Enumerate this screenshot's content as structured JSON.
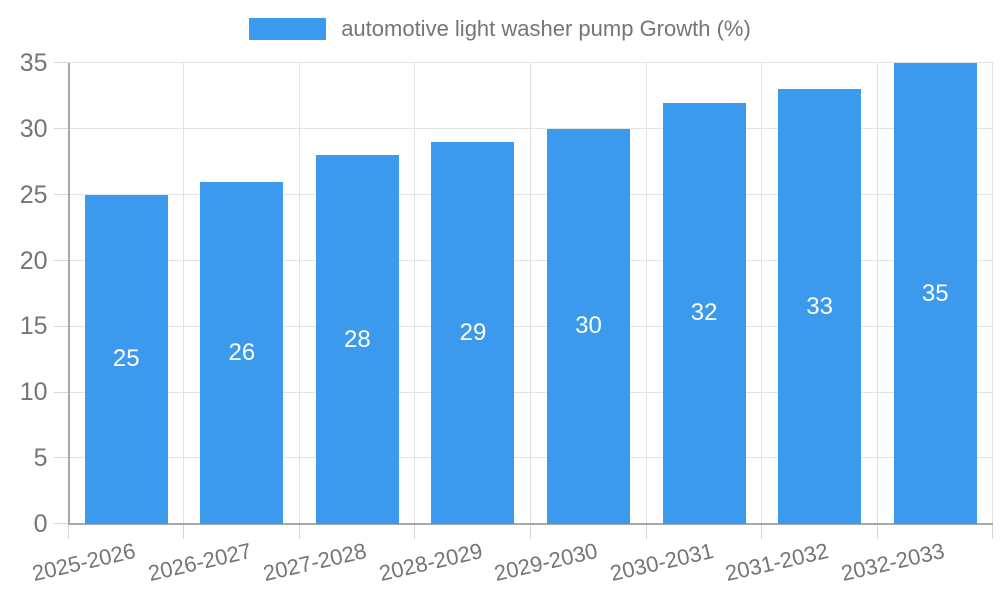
{
  "chart_data": {
    "type": "bar",
    "legend": {
      "label": "automotive light washer pump Growth (%)",
      "position": "top"
    },
    "categories": [
      "2025-2026",
      "2026-2027",
      "2027-2028",
      "2028-2029",
      "2029-2030",
      "2030-2031",
      "2031-2032",
      "2032-2033"
    ],
    "values": [
      25,
      26,
      28,
      29,
      30,
      32,
      33,
      35
    ],
    "bar_value_labels": [
      "25",
      "26",
      "28",
      "29",
      "30",
      "32",
      "33",
      "35"
    ],
    "xlabel": "",
    "ylabel": "",
    "ylim": [
      0,
      35
    ],
    "yticks": [
      0,
      5,
      10,
      15,
      20,
      25,
      30,
      35
    ],
    "grid": true,
    "legend_position": "top-center",
    "colors": {
      "bar": "#3b99ee",
      "bar_value_text": "#ffffff",
      "axis_text": "#757575",
      "gridline": "#e3e3e3",
      "axis_line": "#a8a8a8"
    }
  }
}
